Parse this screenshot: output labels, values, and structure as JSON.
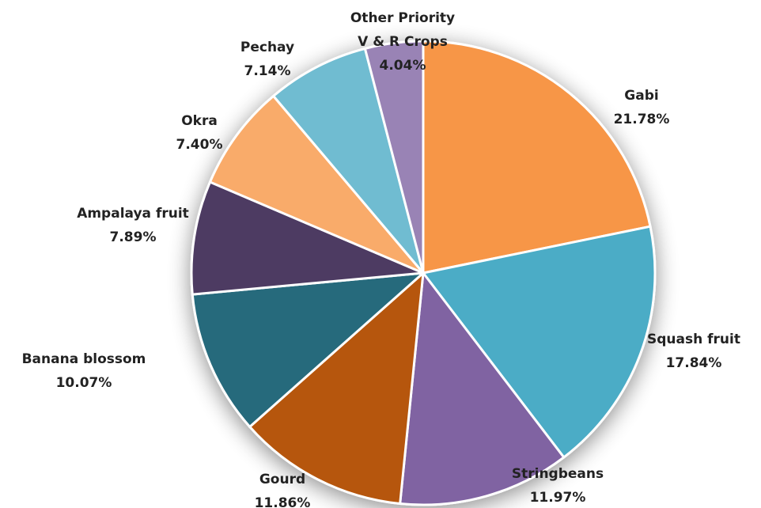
{
  "chart_data": {
    "type": "pie",
    "title": "",
    "slices": [
      {
        "label": "Gabi",
        "value_label": "21.78%",
        "value": 21.78,
        "color": "#F79646"
      },
      {
        "label": "Squash fruit",
        "value_label": "17.84%",
        "value": 17.84,
        "color": "#4BACC6"
      },
      {
        "label": "Stringbeans",
        "value_label": "11.97%",
        "value": 11.97,
        "color": "#8064A2"
      },
      {
        "label": "Gourd",
        "value_label": "11.86%",
        "value": 11.86,
        "color": "#B65708"
      },
      {
        "label": "Banana blossom",
        "value_label": "10.07%",
        "value": 10.07,
        "color": "#276A7C"
      },
      {
        "label": "Ampalaya fruit",
        "value_label": "7.89%",
        "value": 7.89,
        "color": "#4D3B62"
      },
      {
        "label": "Okra",
        "value_label": "7.40%",
        "value": 7.4,
        "color": "#F9AB6B"
      },
      {
        "label": "Pechay",
        "value_label": "7.14%",
        "value": 7.14,
        "color": "#70BCD1"
      },
      {
        "label": "Other Priority V & R Crops",
        "value_label": "4.04%",
        "value": 4.04,
        "color": "#9983B5"
      }
    ]
  }
}
